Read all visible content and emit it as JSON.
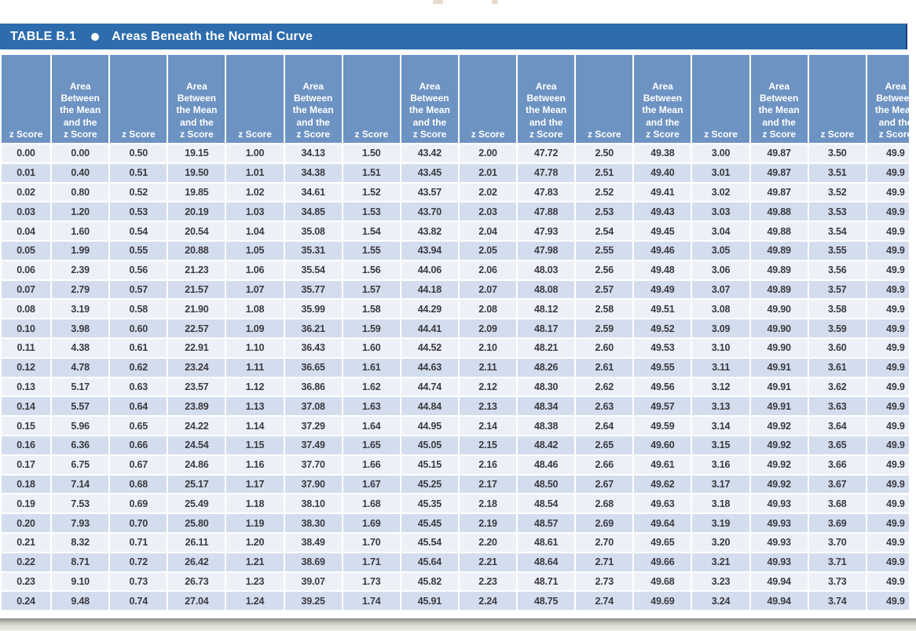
{
  "title_bar": {
    "label": "TABLE B.1",
    "title": "Areas Beneath the Normal Curve"
  },
  "table": {
    "z_header": "z Score",
    "area_header_lines": [
      "Area",
      "Between",
      "the Mean",
      "and the",
      "z Score"
    ],
    "column_pairs": 8,
    "rows": [
      [
        "0.00",
        "0.00",
        "0.50",
        "19.15",
        "1.00",
        "34.13",
        "1.50",
        "43.42",
        "2.00",
        "47.72",
        "2.50",
        "49.38",
        "3.00",
        "49.87",
        "3.50",
        "49.9"
      ],
      [
        "0.01",
        "0.40",
        "0.51",
        "19.50",
        "1.01",
        "34.38",
        "1.51",
        "43.45",
        "2.01",
        "47.78",
        "2.51",
        "49.40",
        "3.01",
        "49.87",
        "3.51",
        "49.9"
      ],
      [
        "0.02",
        "0.80",
        "0.52",
        "19.85",
        "1.02",
        "34.61",
        "1.52",
        "43.57",
        "2.02",
        "47.83",
        "2.52",
        "49.41",
        "3.02",
        "49.87",
        "3.52",
        "49.9"
      ],
      [
        "0.03",
        "1.20",
        "0.53",
        "20.19",
        "1.03",
        "34.85",
        "1.53",
        "43.70",
        "2.03",
        "47.88",
        "2.53",
        "49.43",
        "3.03",
        "49.88",
        "3.53",
        "49.9"
      ],
      [
        "0.04",
        "1.60",
        "0.54",
        "20.54",
        "1.04",
        "35.08",
        "1.54",
        "43.82",
        "2.04",
        "47.93",
        "2.54",
        "49.45",
        "3.04",
        "49.88",
        "3.54",
        "49.9"
      ],
      [
        "0.05",
        "1.99",
        "0.55",
        "20.88",
        "1.05",
        "35.31",
        "1.55",
        "43.94",
        "2.05",
        "47.98",
        "2.55",
        "49.46",
        "3.05",
        "49.89",
        "3.55",
        "49.9"
      ],
      [
        "0.06",
        "2.39",
        "0.56",
        "21.23",
        "1.06",
        "35.54",
        "1.56",
        "44.06",
        "2.06",
        "48.03",
        "2.56",
        "49.48",
        "3.06",
        "49.89",
        "3.56",
        "49.9"
      ],
      [
        "0.07",
        "2.79",
        "0.57",
        "21.57",
        "1.07",
        "35.77",
        "1.57",
        "44.18",
        "2.07",
        "48.08",
        "2.57",
        "49.49",
        "3.07",
        "49.89",
        "3.57",
        "49.9"
      ],
      [
        "0.08",
        "3.19",
        "0.58",
        "21.90",
        "1.08",
        "35.99",
        "1.58",
        "44.29",
        "2.08",
        "48.12",
        "2.58",
        "49.51",
        "3.08",
        "49.90",
        "3.58",
        "49.9"
      ],
      [
        "0.10",
        "3.98",
        "0.60",
        "22.57",
        "1.09",
        "36.21",
        "1.59",
        "44.41",
        "2.09",
        "48.17",
        "2.59",
        "49.52",
        "3.09",
        "49.90",
        "3.59",
        "49.9"
      ],
      [
        "0.11",
        "4.38",
        "0.61",
        "22.91",
        "1.10",
        "36.43",
        "1.60",
        "44.52",
        "2.10",
        "48.21",
        "2.60",
        "49.53",
        "3.10",
        "49.90",
        "3.60",
        "49.9"
      ],
      [
        "0.12",
        "4.78",
        "0.62",
        "23.24",
        "1.11",
        "36.65",
        "1.61",
        "44.63",
        "2.11",
        "48.26",
        "2.61",
        "49.55",
        "3.11",
        "49.91",
        "3.61",
        "49.9"
      ],
      [
        "0.13",
        "5.17",
        "0.63",
        "23.57",
        "1.12",
        "36.86",
        "1.62",
        "44.74",
        "2.12",
        "48.30",
        "2.62",
        "49.56",
        "3.12",
        "49.91",
        "3.62",
        "49.9"
      ],
      [
        "0.14",
        "5.57",
        "0.64",
        "23.89",
        "1.13",
        "37.08",
        "1.63",
        "44.84",
        "2.13",
        "48.34",
        "2.63",
        "49.57",
        "3.13",
        "49.91",
        "3.63",
        "49.9"
      ],
      [
        "0.15",
        "5.96",
        "0.65",
        "24.22",
        "1.14",
        "37.29",
        "1.64",
        "44.95",
        "2.14",
        "48.38",
        "2.64",
        "49.59",
        "3.14",
        "49.92",
        "3.64",
        "49.9"
      ],
      [
        "0.16",
        "6.36",
        "0.66",
        "24.54",
        "1.15",
        "37.49",
        "1.65",
        "45.05",
        "2.15",
        "48.42",
        "2.65",
        "49.60",
        "3.15",
        "49.92",
        "3.65",
        "49.9"
      ],
      [
        "0.17",
        "6.75",
        "0.67",
        "24.86",
        "1.16",
        "37.70",
        "1.66",
        "45.15",
        "2.16",
        "48.46",
        "2.66",
        "49.61",
        "3.16",
        "49.92",
        "3.66",
        "49.9"
      ],
      [
        "0.18",
        "7.14",
        "0.68",
        "25.17",
        "1.17",
        "37.90",
        "1.67",
        "45.25",
        "2.17",
        "48.50",
        "2.67",
        "49.62",
        "3.17",
        "49.92",
        "3.67",
        "49.9"
      ],
      [
        "0.19",
        "7.53",
        "0.69",
        "25.49",
        "1.18",
        "38.10",
        "1.68",
        "45.35",
        "2.18",
        "48.54",
        "2.68",
        "49.63",
        "3.18",
        "49.93",
        "3.68",
        "49.9"
      ],
      [
        "0.20",
        "7.93",
        "0.70",
        "25.80",
        "1.19",
        "38.30",
        "1.69",
        "45.45",
        "2.19",
        "48.57",
        "2.69",
        "49.64",
        "3.19",
        "49.93",
        "3.69",
        "49.9"
      ],
      [
        "0.21",
        "8.32",
        "0.71",
        "26.11",
        "1.20",
        "38.49",
        "1.70",
        "45.54",
        "2.20",
        "48.61",
        "2.70",
        "49.65",
        "3.20",
        "49.93",
        "3.70",
        "49.9"
      ],
      [
        "0.22",
        "8.71",
        "0.72",
        "26.42",
        "1.21",
        "38.69",
        "1.71",
        "45.64",
        "2.21",
        "48.64",
        "2.71",
        "49.66",
        "3.21",
        "49.93",
        "3.71",
        "49.9"
      ],
      [
        "0.23",
        "9.10",
        "0.73",
        "26.73",
        "1.23",
        "39.07",
        "1.73",
        "45.82",
        "2.23",
        "48.71",
        "2.73",
        "49.68",
        "3.23",
        "49.94",
        "3.73",
        "49.9"
      ],
      [
        "0.24",
        "9.48",
        "0.74",
        "27.04",
        "1.24",
        "39.25",
        "1.74",
        "45.91",
        "2.24",
        "48.75",
        "2.74",
        "49.69",
        "3.24",
        "49.94",
        "3.74",
        "49.9"
      ]
    ]
  },
  "colors": {
    "title_bar_blue": "#2d6cad",
    "header_blue": "#6d93c3",
    "row_light": "#edf1f7",
    "row_shaded": "#d3ddee",
    "data_text": "#3b3a40",
    "bottom_bar_gray": "#b9bab2"
  }
}
